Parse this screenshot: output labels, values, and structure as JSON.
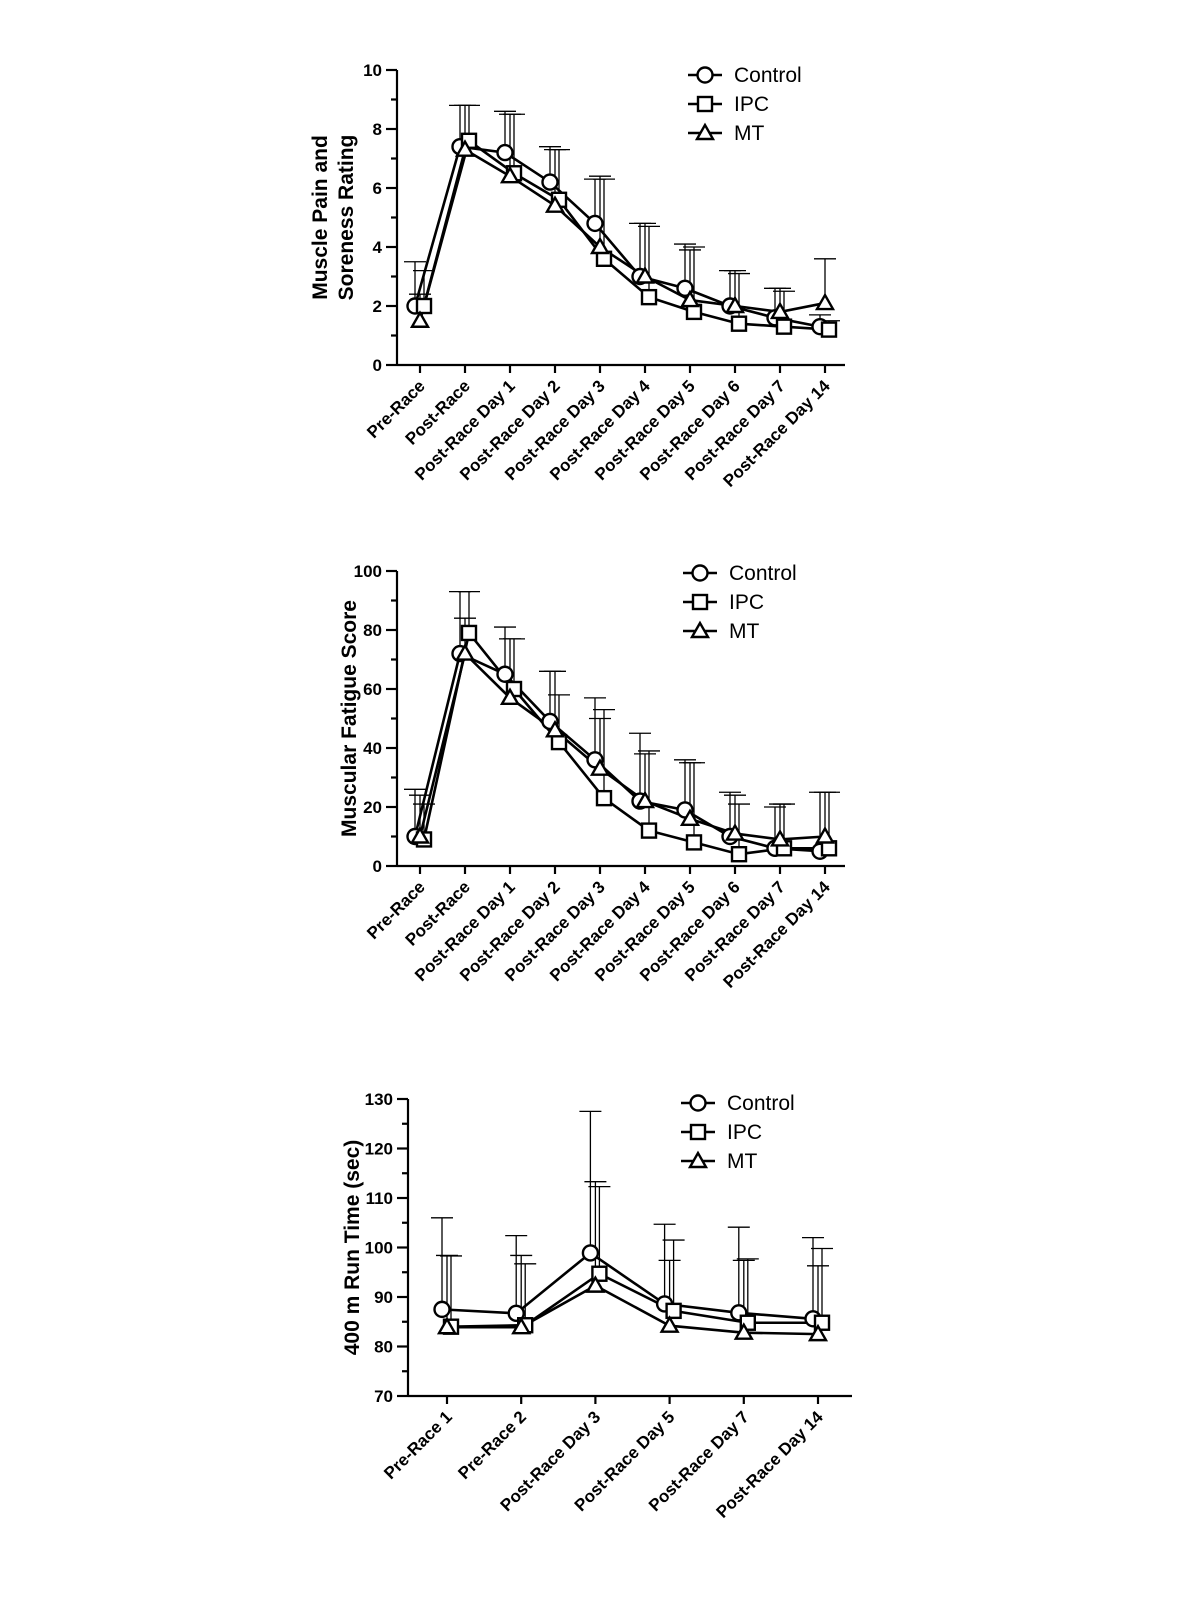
{
  "chart_data": [
    {
      "type": "line",
      "title": "",
      "xlabel": "",
      "ylabel_lines": [
        "Muscle Pain and",
        "Soreness Rating"
      ],
      "ylim": [
        0,
        10
      ],
      "yticks": [
        0,
        2,
        4,
        6,
        8,
        10
      ],
      "categories": [
        "Pre-Race",
        "Post-Race",
        "Post-Race Day 1",
        "Post-Race Day 2",
        "Post-Race Day 3",
        "Post-Race Day 4",
        "Post-Race Day 5",
        "Post-Race Day 6",
        "Post-Race Day 7",
        "Post-Race Day 14"
      ],
      "legend": "top-right",
      "series": [
        {
          "name": "Control",
          "marker": "circle",
          "values": [
            2.0,
            7.4,
            7.2,
            6.2,
            4.8,
            3.0,
            2.6,
            2.0,
            1.6,
            1.3
          ],
          "error": [
            1.5,
            1.4,
            1.4,
            1.2,
            1.5,
            1.8,
            1.5,
            1.2,
            1.0,
            0.4
          ]
        },
        {
          "name": "IPC",
          "marker": "square",
          "values": [
            2.0,
            7.6,
            6.5,
            5.6,
            3.6,
            2.3,
            1.8,
            1.4,
            1.3,
            1.2
          ],
          "error": [
            1.2,
            1.2,
            2.0,
            1.7,
            2.7,
            2.4,
            2.2,
            1.7,
            1.2,
            0.3
          ]
        },
        {
          "name": "MT",
          "marker": "triangle",
          "values": [
            1.5,
            7.3,
            6.4,
            5.4,
            4.0,
            3.0,
            2.2,
            2.0,
            1.8,
            2.1
          ],
          "error": [
            0.9,
            1.5,
            2.1,
            1.9,
            2.4,
            1.8,
            1.7,
            1.2,
            0.8,
            1.5
          ]
        }
      ]
    },
    {
      "type": "line",
      "title": "",
      "xlabel": "",
      "ylabel_lines": [
        "Muscular Fatigue Score"
      ],
      "ylim": [
        0,
        100
      ],
      "yticks": [
        0,
        20,
        40,
        60,
        80,
        100
      ],
      "categories": [
        "Pre-Race",
        "Post-Race",
        "Post-Race Day 1",
        "Post-Race Day 2",
        "Post-Race Day 3",
        "Post-Race Day 4",
        "Post-Race Day 5",
        "Post-Race Day 6",
        "Post-Race Day 7",
        "Post-Race Day 14"
      ],
      "legend": "top-right",
      "series": [
        {
          "name": "Control",
          "marker": "circle",
          "values": [
            10,
            72,
            65,
            49,
            36,
            22,
            19,
            10,
            6,
            5
          ],
          "error": [
            16,
            21,
            16,
            17,
            21,
            23,
            17,
            15,
            14,
            20
          ]
        },
        {
          "name": "IPC",
          "marker": "square",
          "values": [
            9,
            79,
            60,
            42,
            23,
            12,
            8,
            4,
            6,
            6
          ],
          "error": [
            12,
            14,
            17,
            16,
            30,
            27,
            27,
            17,
            15,
            19
          ]
        },
        {
          "name": "MT",
          "marker": "triangle",
          "values": [
            10,
            72,
            57,
            46,
            33,
            22,
            16,
            11,
            9,
            10
          ],
          "error": [
            14,
            12,
            20,
            20,
            17,
            16,
            19,
            13,
            12,
            15
          ]
        }
      ]
    },
    {
      "type": "line",
      "title": "",
      "xlabel": "",
      "ylabel_lines": [
        "400 m Run Time (sec)"
      ],
      "ylim": [
        70,
        130
      ],
      "yticks": [
        70,
        80,
        90,
        100,
        110,
        120,
        130
      ],
      "categories": [
        "Pre-Race 1",
        "Pre-Race 2",
        "Post-Race Day 3",
        "Post-Race Day 5",
        "Post-Race Day 7",
        "Post-Race Day 14"
      ],
      "legend": "top-right",
      "series": [
        {
          "name": "Control",
          "marker": "circle",
          "values": [
            87.5,
            86.7,
            98.9,
            88.6,
            86.8,
            85.6
          ],
          "error": [
            18.5,
            15.7,
            28.6,
            16.1,
            17.3,
            16.4
          ]
        },
        {
          "name": "IPC",
          "marker": "square",
          "values": [
            84.0,
            84.3,
            94.7,
            87.2,
            84.8,
            84.8
          ],
          "error": [
            14.3,
            12.4,
            17.6,
            14.3,
            12.9,
            15.0
          ]
        },
        {
          "name": "MT",
          "marker": "triangle",
          "values": [
            83.9,
            83.9,
            92.3,
            84.2,
            82.8,
            82.5
          ],
          "error": [
            14.5,
            14.5,
            21.0,
            13.2,
            14.6,
            13.8
          ]
        }
      ]
    }
  ]
}
